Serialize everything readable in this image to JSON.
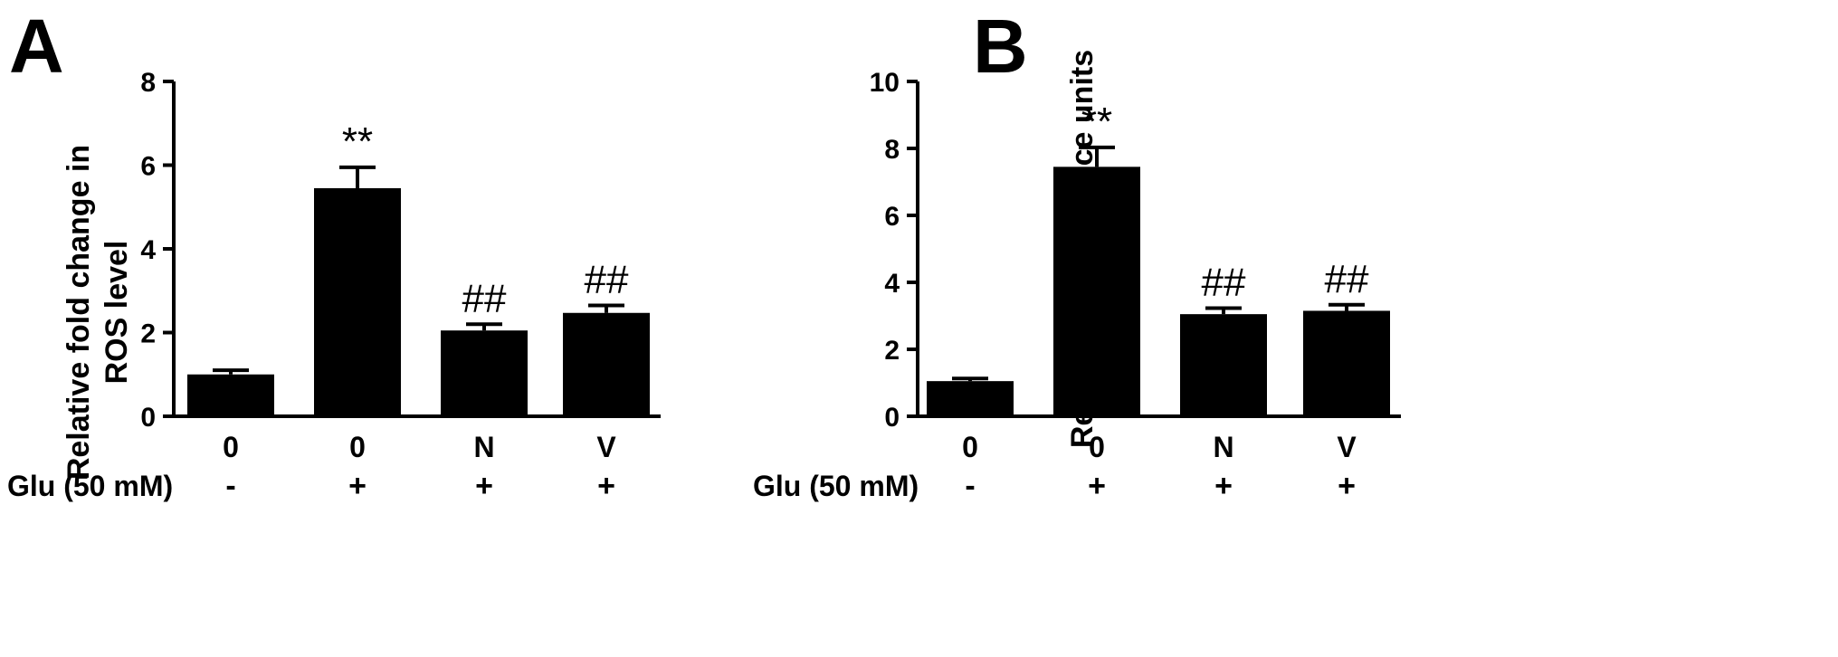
{
  "chart_data": [
    {
      "panel": "A",
      "type": "bar",
      "categories": [
        "0",
        "0",
        "N",
        "V"
      ],
      "values": [
        1.0,
        5.45,
        2.05,
        2.47
      ],
      "errors": [
        0.1,
        0.5,
        0.15,
        0.18
      ],
      "annotations": [
        "",
        "**",
        "##",
        "##"
      ],
      "ylabel": [
        "Relative fold change in",
        "ROS level"
      ],
      "ylim": [
        0,
        8
      ],
      "yticks": [
        "0",
        "2",
        "4",
        "6",
        "8"
      ],
      "treatment_label": "Glu (50 mM)",
      "treatment": [
        "-",
        "+",
        "+",
        "+"
      ],
      "bar_color": "#000000"
    },
    {
      "panel": "B",
      "type": "bar",
      "categories": [
        "0",
        "0",
        "N",
        "V"
      ],
      "values": [
        1.05,
        7.45,
        3.05,
        3.15
      ],
      "errors": [
        0.08,
        0.58,
        0.18,
        0.18
      ],
      "annotations": [
        "",
        "**",
        "##",
        "##"
      ],
      "ylabel": [
        "Relative fluorescence units"
      ],
      "ylim": [
        0,
        10
      ],
      "yticks": [
        "0",
        "2",
        "4",
        "6",
        "8",
        "10"
      ],
      "treatment_label": "Glu (50 mM)",
      "treatment": [
        "-",
        "+",
        "+",
        "+"
      ],
      "bar_color": "#000000"
    }
  ]
}
